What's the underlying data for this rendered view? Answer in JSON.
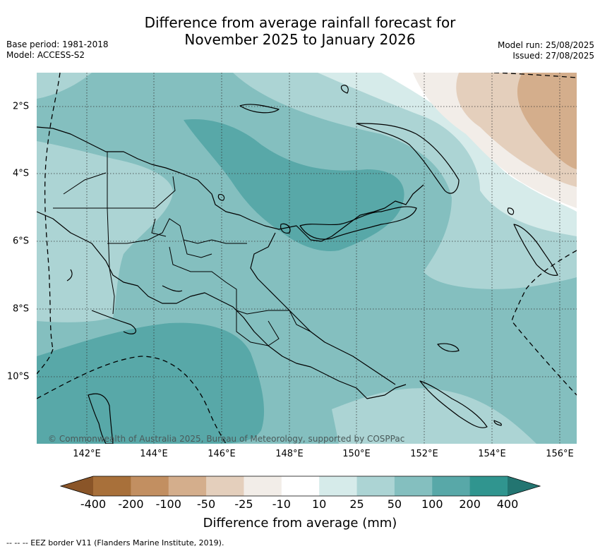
{
  "title": {
    "line1": "Difference from average rainfall forecast for",
    "line2": "November 2025 to January 2026"
  },
  "meta_left": {
    "base_period": "Base period: 1981-2018",
    "model": "Model: ACCESS-S2"
  },
  "meta_right": {
    "model_run": "Model run: 25/08/2025",
    "issued": "Issued: 27/08/2025"
  },
  "map": {
    "lat_labels": [
      "2°S",
      "4°S",
      "6°S",
      "8°S",
      "10°S"
    ],
    "lon_labels": [
      "142°E",
      "144°E",
      "146°E",
      "148°E",
      "150°E",
      "152°E",
      "154°E",
      "156°E"
    ],
    "copyright": "© Commonwealth of Australia 2025, Bureau of Meteorology, supported by COSPPac",
    "colors": {
      "c_25_50": "#acd4d4",
      "c_50_100": "#84bfbf",
      "c_100_200": "#58a8a8",
      "c_10_25": "#d6ebea",
      "c_m10_m25": "#f2ede8",
      "c_m25_m50": "#e4cfbc",
      "c_m50_m100": "#d4ae8c"
    }
  },
  "colorbar": {
    "ticks": [
      "-400",
      "-200",
      "-100",
      "-50",
      "-25",
      "-10",
      "10",
      "25",
      "50",
      "100",
      "200",
      "400"
    ],
    "colors": [
      "#a8703a",
      "#c28f61",
      "#d4ae8c",
      "#e4cfbc",
      "#f2ede8",
      "#ffffff",
      "#d6ebea",
      "#acd4d4",
      "#84bfbf",
      "#58a8a8",
      "#30958f"
    ],
    "under_color": "#8a5528",
    "over_color": "#237571",
    "label": "Difference from average (mm)"
  },
  "footnote": "--  --  -- EEZ border V11 (Flanders Marine Institute, 2019)."
}
